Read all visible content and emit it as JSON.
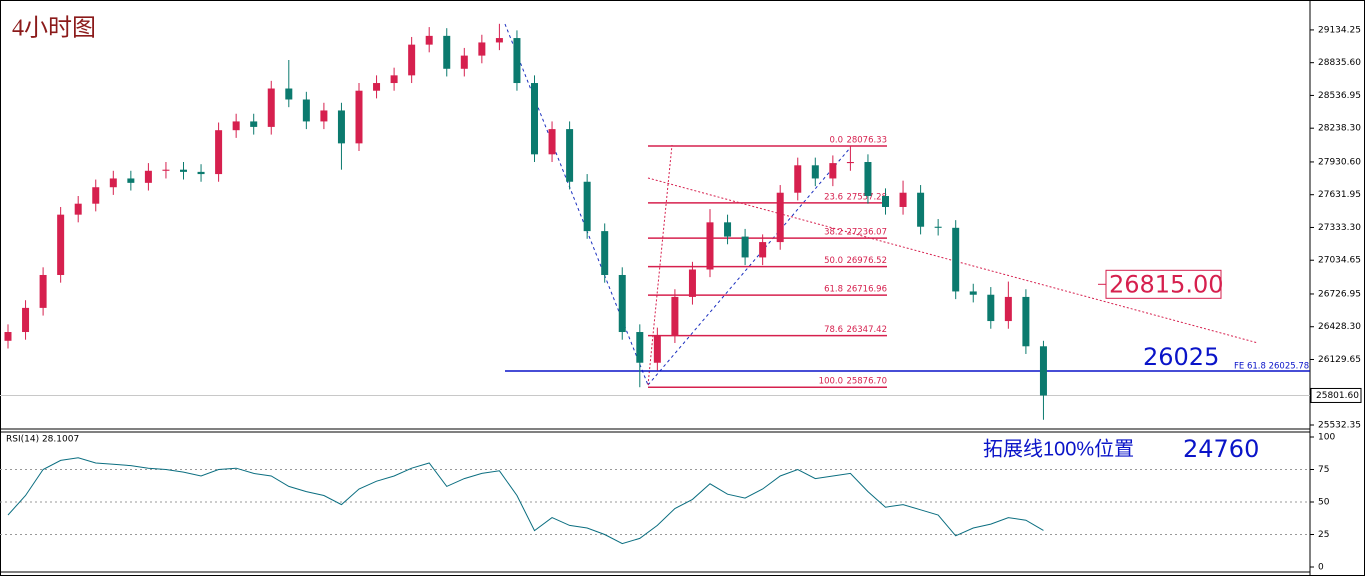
{
  "chart_data": [
    {
      "type": "candlestick",
      "title": "4小时图",
      "open": [
        26300,
        26380,
        26600,
        26900,
        27450,
        27550,
        27700,
        27780,
        27740,
        27850,
        27860,
        27840,
        27820,
        28220,
        28300,
        28250,
        28600,
        28500,
        28300,
        28400,
        28100,
        28580,
        28650,
        28720,
        29000,
        29080,
        28780,
        28900,
        29020,
        29060,
        28650,
        28000,
        28230,
        27750,
        27300,
        26900,
        26380,
        26100,
        26350,
        26700,
        26950,
        27380,
        27250,
        27060,
        27200,
        27650,
        27900,
        27780,
        27920,
        27930,
        27620,
        27520,
        27650,
        27340,
        27330,
        26750,
        26720,
        26480,
        26700,
        26250
      ],
      "high": [
        26450,
        26670,
        26970,
        27520,
        27620,
        27770,
        27850,
        27850,
        27920,
        27930,
        27930,
        27910,
        28290,
        28370,
        28370,
        28670,
        28860,
        28570,
        28470,
        28470,
        28650,
        28720,
        28790,
        29070,
        29160,
        29150,
        28970,
        29090,
        29190,
        29130,
        28720,
        28300,
        28300,
        27820,
        27370,
        26970,
        26450,
        26420,
        26770,
        27020,
        27500,
        27450,
        27320,
        27270,
        27720,
        27970,
        27970,
        27990,
        28076,
        28000,
        27690,
        27760,
        27720,
        27410,
        27400,
        26820,
        26790,
        26840,
        26770,
        26300
      ],
      "low": [
        26230,
        26310,
        26530,
        26830,
        27380,
        27480,
        27630,
        27670,
        27670,
        27780,
        27770,
        27750,
        27750,
        28150,
        28180,
        28180,
        28430,
        28230,
        28230,
        27860,
        28030,
        28510,
        28580,
        28650,
        28930,
        28710,
        28710,
        28830,
        28950,
        28580,
        27930,
        27930,
        27680,
        27230,
        26830,
        26310,
        25877,
        26030,
        26280,
        26630,
        26880,
        27180,
        26990,
        26990,
        27130,
        27580,
        27710,
        27710,
        27850,
        27550,
        27450,
        27450,
        27270,
        27260,
        26680,
        26650,
        26410,
        26410,
        26180,
        25580
      ],
      "close": [
        26380,
        26600,
        26900,
        27450,
        27550,
        27700,
        27780,
        27740,
        27850,
        27860,
        27840,
        27820,
        28220,
        28300,
        28250,
        28600,
        28500,
        28300,
        28400,
        28100,
        28580,
        28650,
        28720,
        29000,
        29080,
        28780,
        28900,
        29020,
        29060,
        28650,
        28000,
        28230,
        27750,
        27300,
        26900,
        26380,
        26100,
        26350,
        26700,
        26950,
        27380,
        27250,
        27060,
        27200,
        27650,
        27900,
        27780,
        27920,
        27930,
        27620,
        27520,
        27650,
        27340,
        27330,
        26750,
        26720,
        26480,
        26700,
        26250,
        25801.6
      ],
      "colors": {
        "up": "#d6204e",
        "down": "#0b7a6e"
      },
      "ylim": [
        25505,
        29407
      ],
      "yticks": [
        {
          "value": 29134.25,
          "label": "29134.25"
        },
        {
          "value": 28835.6,
          "label": "28835.60"
        },
        {
          "value": 28536.95,
          "label": "28536.95"
        },
        {
          "value": 28238.3,
          "label": "28238.30"
        },
        {
          "value": 27930.6,
          "label": "27930.60"
        },
        {
          "value": 27631.95,
          "label": "27631.95"
        },
        {
          "value": 27333.3,
          "label": "27333.30"
        },
        {
          "value": 27034.65,
          "label": "27034.65"
        },
        {
          "value": 26726.95,
          "label": "26726.95"
        },
        {
          "value": 26428.3,
          "label": "26428.30"
        },
        {
          "value": 26129.65,
          "label": "26129.65"
        },
        {
          "value": 25532.35,
          "label": "25532.35"
        }
      ],
      "last_price": {
        "value": 25801.6,
        "label": "25801.60"
      },
      "fib": {
        "color": "#d6204e",
        "levels": [
          {
            "ratio": "0.0",
            "price": 28076.33
          },
          {
            "ratio": "23.6",
            "price": 27557.28
          },
          {
            "ratio": "38.2",
            "price": 27236.07
          },
          {
            "ratio": "50.0",
            "price": 26976.52
          },
          {
            "ratio": "61.8",
            "price": 26716.96
          },
          {
            "ratio": "78.6",
            "price": 26347.42
          },
          {
            "ratio": "100.0",
            "price": {
              "value": 25876.7,
              "label": "25876.70"
            }
          }
        ]
      },
      "level_line": {
        "price": 26025,
        "fe_label": "FE 61.8 26025.78",
        "color": "#0a14c8"
      },
      "resistance": {
        "value": 26815,
        "label": "26815.00"
      },
      "note": "拓展线100%位置",
      "target": 24760
    },
    {
      "type": "line",
      "title": "RSI(14) 28.1007",
      "color": "#0b6e80",
      "values": [
        40,
        55,
        75,
        82,
        84,
        80,
        79,
        78,
        76,
        75,
        73,
        70,
        75,
        76,
        72,
        70,
        62,
        58,
        55,
        48,
        60,
        66,
        70,
        76,
        80,
        62,
        68,
        72,
        74,
        55,
        28,
        38,
        32,
        30,
        25,
        18,
        22,
        32,
        45,
        52,
        64,
        56,
        53,
        60,
        70,
        75,
        68,
        70,
        72,
        58,
        46,
        48,
        44,
        40,
        24,
        30,
        33,
        38,
        36,
        28.1
      ],
      "ylim": [
        0,
        100
      ],
      "yticks": [
        100,
        75,
        50,
        25,
        0
      ],
      "grid": [
        75,
        50,
        25
      ]
    }
  ]
}
